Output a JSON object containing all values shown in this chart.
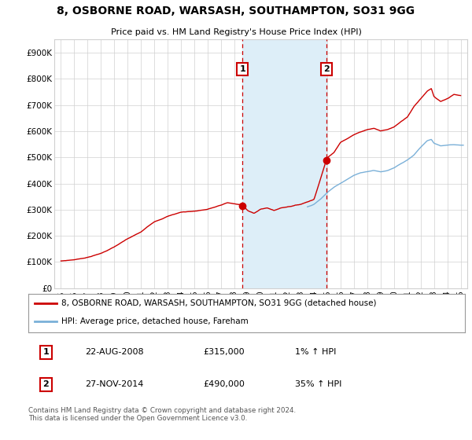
{
  "title": "8, OSBORNE ROAD, WARSASH, SOUTHAMPTON, SO31 9GG",
  "subtitle": "Price paid vs. HM Land Registry's House Price Index (HPI)",
  "ylabel_ticks": [
    "£0",
    "£100K",
    "£200K",
    "£300K",
    "£400K",
    "£500K",
    "£600K",
    "£700K",
    "£800K",
    "£900K"
  ],
  "ytick_values": [
    0,
    100000,
    200000,
    300000,
    400000,
    500000,
    600000,
    700000,
    800000,
    900000
  ],
  "ylim": [
    0,
    950000
  ],
  "xlim_start": 1994.5,
  "xlim_end": 2025.5,
  "sale1_date": 2008.64,
  "sale1_price": 315000,
  "sale1_label": "1",
  "sale1_text": "22-AUG-2008",
  "sale1_pct": "1% ↑ HPI",
  "sale2_date": 2014.91,
  "sale2_price": 490000,
  "sale2_label": "2",
  "sale2_text": "27-NOV-2014",
  "sale2_pct": "35% ↑ HPI",
  "legend_line1": "8, OSBORNE ROAD, WARSASH, SOUTHAMPTON, SO31 9GG (detached house)",
  "legend_line2": "HPI: Average price, detached house, Fareham",
  "footnote": "Contains HM Land Registry data © Crown copyright and database right 2024.\nThis data is licensed under the Open Government Licence v3.0.",
  "hpi_color": "#7ab0d8",
  "price_color": "#cc0000",
  "shade_color": "#ddeef8",
  "grid_color": "#d0d0d0",
  "bg_color": "#ffffff",
  "sale_box_color": "#cc0000"
}
